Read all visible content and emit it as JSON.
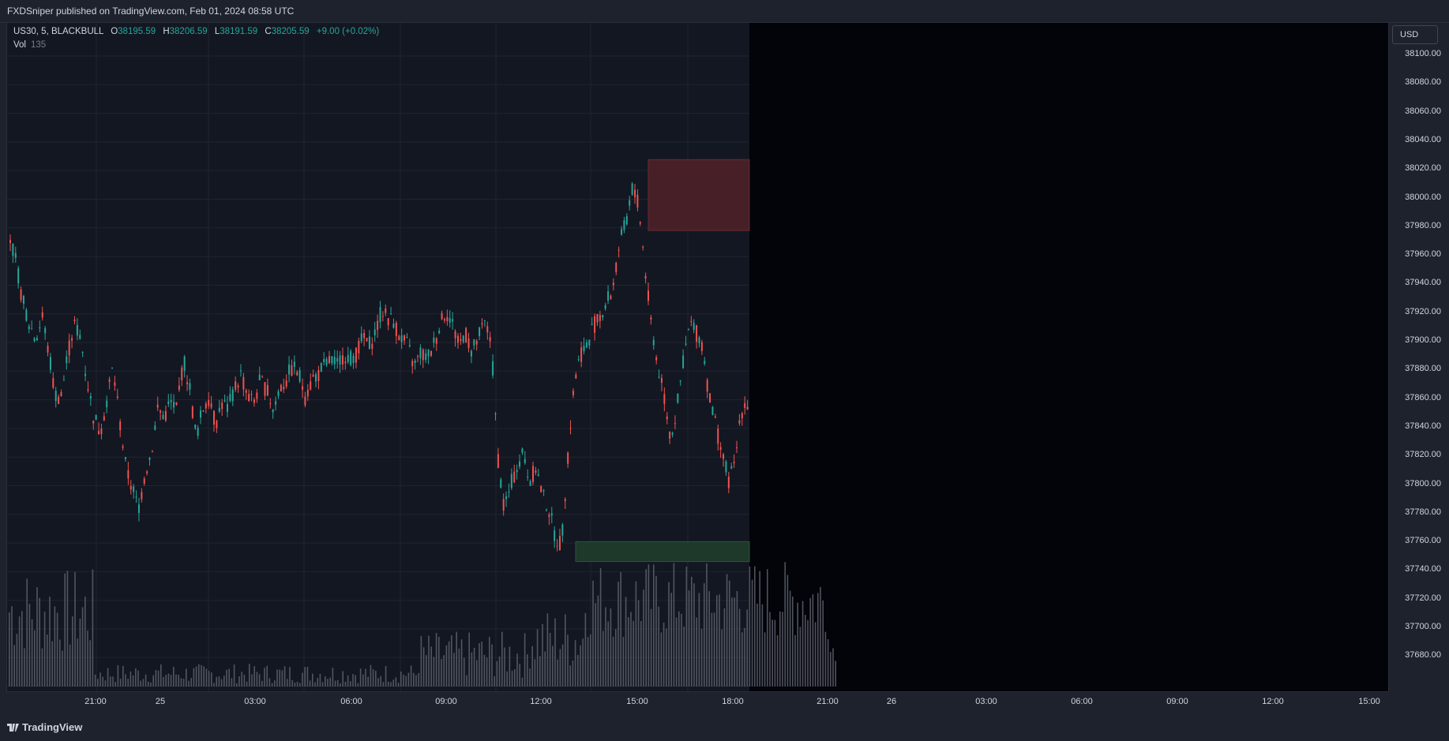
{
  "header": {
    "published": "FXDSniper published on TradingView.com, Feb 01, 2024 08:58 UTC"
  },
  "legend": {
    "symbol": "US30, 5, BLACKBULL",
    "o_label": "O",
    "o_value": "38195.59",
    "h_label": "H",
    "h_value": "38206.59",
    "l_label": "L",
    "l_value": "38191.59",
    "c_label": "C",
    "c_value": "38205.59",
    "change": "+9.00 (+0.02%)",
    "vol_label": "Vol",
    "vol_value": "135"
  },
  "currency_button": "USD",
  "price_scale": [
    "38100.00",
    "38080.00",
    "38060.00",
    "38040.00",
    "38020.00",
    "38000.00",
    "37980.00",
    "37960.00",
    "37940.00",
    "37920.00",
    "37900.00",
    "37880.00",
    "37860.00",
    "37840.00",
    "37820.00",
    "37800.00",
    "37780.00",
    "37760.00",
    "37740.00",
    "37720.00",
    "37700.00",
    "37680.00"
  ],
  "time_scale": [
    "21:00",
    "25",
    "03:00",
    "06:00",
    "09:00",
    "12:00",
    "15:00",
    "18:00",
    "21:00",
    "26",
    "03:00",
    "06:00",
    "09:00",
    "12:00",
    "15:00"
  ],
  "footer": {
    "brand": "TradingView"
  },
  "colors": {
    "up": "#26a69a",
    "down": "#ef5350",
    "background": "#131722",
    "future_area": "#020409",
    "supply_zone": "#4a2128",
    "demand_zone": "#1f3a2b",
    "volume": "#5d606b"
  },
  "chart_data": {
    "type": "candlestick",
    "symbol": "US30",
    "timeframe": "5",
    "ylim": [
      37665,
      38110
    ],
    "zones": [
      {
        "type": "supply",
        "low": 37986,
        "high": 38036
      },
      {
        "type": "demand",
        "low": 37753,
        "high": 37767
      }
    ],
    "candles_path": [
      37980,
      37960,
      37935,
      37920,
      37910,
      37925,
      37900,
      37870,
      37870,
      37900,
      37920,
      37910,
      37880,
      37855,
      37845,
      37865,
      37890,
      37855,
      37820,
      37805,
      37790,
      37815,
      37830,
      37860,
      37855,
      37865,
      37860,
      37895,
      37875,
      37840,
      37860,
      37870,
      37850,
      37865,
      37860,
      37875,
      37885,
      37870,
      37865,
      37880,
      37875,
      37860,
      37875,
      37880,
      37890,
      37885,
      37870,
      37880,
      37885,
      37890,
      37895,
      37890,
      37900,
      37895,
      37900,
      37910,
      37905,
      37915,
      37930,
      37925,
      37920,
      37910,
      37905,
      37890,
      37900,
      37895,
      37905,
      37920,
      37930,
      37920,
      37905,
      37915,
      37900,
      37910,
      37920,
      37910,
      37830,
      37790,
      37805,
      37820,
      37830,
      37810,
      37820,
      37800,
      37790,
      37770,
      37765,
      37830,
      37880,
      37900,
      37905,
      37920,
      37925,
      37935,
      37945,
      37975,
      37990,
      38015,
      38005,
      37960,
      37920,
      37890,
      37870,
      37840,
      37860,
      37895,
      37920,
      37915,
      37905,
      37870,
      37850,
      37830,
      37810,
      37820,
      37860,
      37865
    ]
  }
}
